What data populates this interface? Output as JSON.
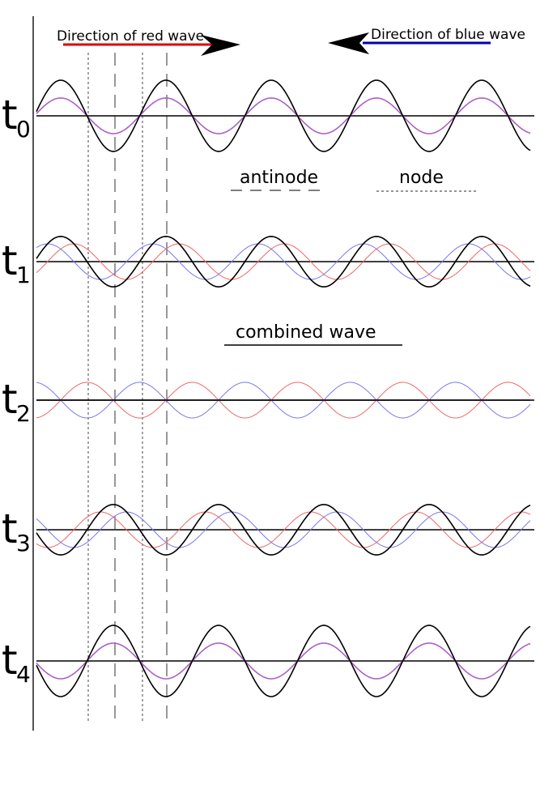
{
  "header": {
    "red_direction": "Direction of red wave",
    "blue_direction": "Direction of blue wave"
  },
  "legend": {
    "antinode": "antinode",
    "node": "node",
    "combined": "combined wave"
  },
  "panels": [
    {
      "label": "t",
      "subscript": "0"
    },
    {
      "label": "t",
      "subscript": "1"
    },
    {
      "label": "t",
      "subscript": "2"
    },
    {
      "label": "t",
      "subscript": "3"
    },
    {
      "label": "t",
      "subscript": "4"
    }
  ]
}
